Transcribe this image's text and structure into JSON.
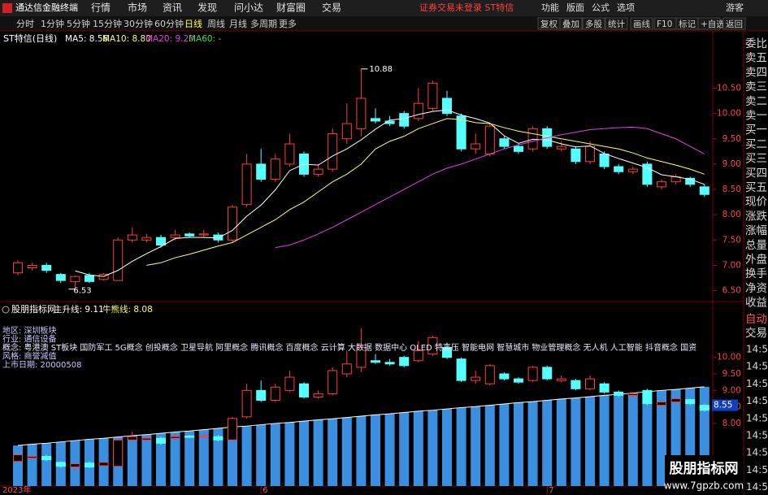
{
  "app": {
    "title": "通达信金融终端",
    "menu": [
      "行情",
      "市场",
      "资讯",
      "发现",
      "问小达",
      "财富圈",
      "交易"
    ],
    "notice": "证券交易未登录 ST特信",
    "right_menu": [
      "功能",
      "版面",
      "公式",
      "选项"
    ],
    "user": "游客"
  },
  "toolbar": {
    "periods": [
      "分时",
      "1分钟",
      "5分钟",
      "15分钟",
      "30分钟",
      "60分钟",
      "日线",
      "周线",
      "月线",
      "多周期",
      "更多"
    ],
    "active_index": 6,
    "buttons": [
      "复权",
      "叠加",
      "多股",
      "统计",
      "画线",
      "F10",
      "标记",
      "+自选",
      "返回"
    ]
  },
  "chart_data": [
    {
      "type": "candlestick",
      "title": "ST特信(日线)",
      "legend": [
        "MA5: 8.56",
        "MA10: 8.80",
        "MA20: 9.20",
        "MA60: -"
      ],
      "categories": [
        "2023年",
        null,
        null,
        null,
        null,
        null,
        null,
        null,
        null,
        null,
        null,
        null,
        null,
        null,
        null,
        null,
        null,
        "6",
        null,
        null,
        null,
        null,
        null,
        null,
        null,
        null,
        null,
        null,
        null,
        null,
        null,
        null,
        null,
        null,
        null,
        null,
        null,
        "7",
        null,
        null,
        null,
        null,
        null,
        null,
        null,
        null,
        null,
        null,
        null
      ],
      "open": [
        6.85,
        6.95,
        7.0,
        6.82,
        6.68,
        6.8,
        6.72,
        6.7,
        7.5,
        7.5,
        7.55,
        7.55,
        7.62,
        7.6,
        7.6,
        7.5,
        8.2,
        9.0,
        8.7,
        9.0,
        9.2,
        8.8,
        8.9,
        9.5,
        9.7,
        9.9,
        9.85,
        10.0,
        9.9,
        10.1,
        10.3,
        9.95,
        9.3,
        9.2,
        9.5,
        9.35,
        9.3,
        9.7,
        9.3,
        9.3,
        9.05,
        9.2,
        8.95,
        8.85,
        9.0,
        8.55,
        8.65,
        8.72,
        8.55
      ],
      "high": [
        7.1,
        7.05,
        7.05,
        6.85,
        6.8,
        6.85,
        6.85,
        7.55,
        7.75,
        7.62,
        7.6,
        7.7,
        7.65,
        7.7,
        7.65,
        8.2,
        9.2,
        9.3,
        9.2,
        9.6,
        9.25,
        9.0,
        9.7,
        10.2,
        10.88,
        10.1,
        9.95,
        10.05,
        10.5,
        10.65,
        10.45,
        10.0,
        9.6,
        9.8,
        9.55,
        9.4,
        9.75,
        9.75,
        9.45,
        9.35,
        9.45,
        9.25,
        9.0,
        8.95,
        9.05,
        8.7,
        8.8,
        8.75,
        8.6
      ],
      "low": [
        6.8,
        6.9,
        6.85,
        6.65,
        6.53,
        6.65,
        6.7,
        6.7,
        7.45,
        7.45,
        7.35,
        7.5,
        7.55,
        7.55,
        7.45,
        7.45,
        8.15,
        8.65,
        8.65,
        8.95,
        8.75,
        8.75,
        8.85,
        9.4,
        9.55,
        9.8,
        9.75,
        9.7,
        9.85,
        10.05,
        9.95,
        9.25,
        9.2,
        9.15,
        9.3,
        9.2,
        9.25,
        9.3,
        9.25,
        9.0,
        9.0,
        8.9,
        8.8,
        8.8,
        8.55,
        8.5,
        8.6,
        8.55,
        8.35
      ],
      "close": [
        7.05,
        7.0,
        6.9,
        6.7,
        6.78,
        6.68,
        6.82,
        7.5,
        7.6,
        7.55,
        7.4,
        7.6,
        7.58,
        7.62,
        7.5,
        8.15,
        9.0,
        8.7,
        9.1,
        9.4,
        8.8,
        8.9,
        9.6,
        9.8,
        10.3,
        9.85,
        9.8,
        9.75,
        10.2,
        10.6,
        10.0,
        9.3,
        9.4,
        9.75,
        9.35,
        9.25,
        9.7,
        9.35,
        9.35,
        9.05,
        9.35,
        8.95,
        8.85,
        8.9,
        8.6,
        8.65,
        8.75,
        8.6,
        8.4
      ],
      "up_color": "#ff3c3c",
      "down_color": "#54ffff",
      "series": [
        {
          "name": "MA5",
          "color": "#ffffff",
          "values": [
            null,
            null,
            null,
            null,
            6.89,
            6.81,
            6.78,
            6.9,
            7.08,
            7.23,
            7.37,
            7.53,
            7.55,
            7.55,
            7.54,
            7.69,
            7.97,
            8.19,
            8.49,
            8.87,
            9.0,
            8.98,
            9.16,
            9.3,
            9.48,
            9.69,
            9.87,
            9.9,
            9.98,
            10.04,
            10.07,
            9.97,
            9.9,
            9.81,
            9.56,
            9.41,
            9.49,
            9.48,
            9.4,
            9.34,
            9.36,
            9.21,
            9.11,
            9.02,
            8.93,
            8.79,
            8.75,
            8.7,
            8.6
          ]
        },
        {
          "name": "MA10",
          "color": "#ffff66",
          "values": [
            null,
            null,
            null,
            null,
            null,
            null,
            null,
            null,
            null,
            7.0,
            7.05,
            7.15,
            7.22,
            7.3,
            7.38,
            7.45,
            7.6,
            7.75,
            7.9,
            8.1,
            8.25,
            8.45,
            8.65,
            8.8,
            9.0,
            9.3,
            9.45,
            9.55,
            9.7,
            9.8,
            9.9,
            9.88,
            9.82,
            9.8,
            9.72,
            9.65,
            9.6,
            9.55,
            9.5,
            9.45,
            9.4,
            9.35,
            9.3,
            9.22,
            9.12,
            9.05,
            8.98,
            8.9,
            8.8
          ]
        },
        {
          "name": "MA20",
          "color": "#e040e0",
          "values": [
            null,
            null,
            null,
            null,
            null,
            null,
            null,
            null,
            null,
            null,
            null,
            null,
            null,
            null,
            null,
            null,
            null,
            null,
            7.35,
            7.4,
            7.5,
            7.62,
            7.75,
            7.9,
            8.05,
            8.2,
            8.35,
            8.5,
            8.65,
            8.8,
            8.92,
            9.0,
            9.1,
            9.2,
            9.3,
            9.38,
            9.45,
            9.52,
            9.58,
            9.63,
            9.68,
            9.7,
            9.72,
            9.73,
            9.7,
            9.6,
            9.5,
            9.35,
            9.2
          ]
        }
      ],
      "ylim": [
        6.3,
        11.6
      ],
      "yticks": [
        {
          "value": 6.5,
          "label": "6.50"
        },
        {
          "value": 7,
          "label": "7.00"
        },
        {
          "value": 7.5,
          "label": "7.50"
        },
        {
          "value": 8,
          "label": "8.00"
        },
        {
          "value": 8.5,
          "label": "8.50"
        },
        {
          "value": 9,
          "label": "9.00"
        },
        {
          "value": 9.5,
          "label": "9.50"
        },
        {
          "value": 10,
          "label": "10.00"
        },
        {
          "value": 10.5,
          "label": "10.50"
        }
      ]
    },
    {
      "type": "bar",
      "title": "股朋指标网",
      "legend": [
        "主升线: 9.11",
        "牛熊线: 8.08"
      ],
      "series": [
        {
          "name": "主升线",
          "color": "#3a8fe0",
          "values": [
            7.33,
            7.37,
            7.4,
            7.44,
            7.48,
            7.52,
            7.55,
            7.59,
            7.63,
            7.66,
            7.7,
            7.74,
            7.77,
            7.81,
            7.85,
            7.89,
            7.92,
            7.96,
            8.0,
            8.03,
            8.07,
            8.11,
            8.14,
            8.18,
            8.22,
            8.26,
            8.29,
            8.33,
            8.37,
            8.4,
            8.44,
            8.48,
            8.51,
            8.55,
            8.59,
            8.63,
            8.66,
            8.7,
            8.74,
            8.77,
            8.81,
            8.85,
            8.88,
            8.92,
            8.96,
            9.0,
            9.03,
            9.07,
            9.11
          ]
        }
      ],
      "info": [
        "地区:   深圳板块",
        "行业:   通信设备",
        "概念:   粤港澳 ST板块 国防军工 5G概念 创投概念 卫星导航 阿里概念 腾讯概念 百度概念 云计算 大数据 数据中心 OLED 特高压 智能电网 智慧城市 物业管理概念 无人机 人工智能 抖音概念 国资",
        "风格:   商誉减值",
        "上市日期: 20000508"
      ],
      "price_marker": 8.55,
      "ylim": [
        6.3,
        11.1
      ],
      "yticks": [
        {
          "value": 8,
          "label": "8.00"
        },
        {
          "value": 8.5,
          "label": "8.50"
        },
        {
          "value": 9,
          "label": "9.00"
        },
        {
          "value": 9.5,
          "label": "9.50"
        },
        {
          "value": 10,
          "label": "10.00"
        }
      ]
    }
  ],
  "side_panel": {
    "labels": [
      "委比",
      "卖五",
      "卖四",
      "卖三",
      "卖二",
      "卖一",
      "买一",
      "买二",
      "买三",
      "买四",
      "买五",
      "现价",
      "涨跌",
      "涨幅",
      "总量",
      "外盘",
      "换手",
      "净资",
      "收益"
    ],
    "mode": [
      "自动",
      "交易"
    ],
    "times": [
      "14:56",
      "14:56",
      "14:56",
      "14:56",
      "14:56",
      "14:56",
      "14:56",
      "14:56",
      "14:56"
    ]
  },
  "watermark": {
    "name": "股朋指标网",
    "url": "www.7gpzb.com"
  }
}
